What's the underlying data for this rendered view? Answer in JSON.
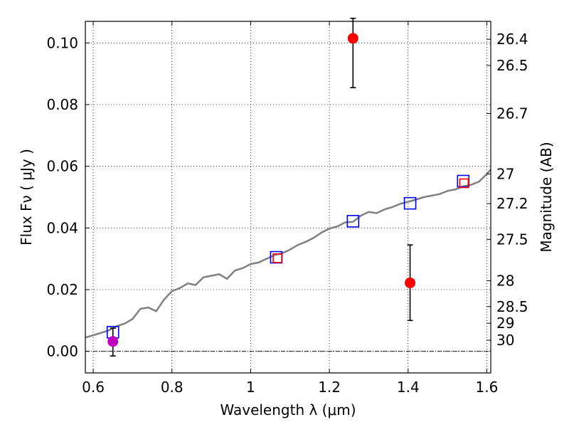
{
  "chart_data": {
    "type": "scatter",
    "xlabel": "Wavelength  λ (μm)",
    "ylabel": "Flux  Fν  ( μJy )",
    "y2label": "Magnitude (AB)",
    "xlim": [
      0.58,
      1.61
    ],
    "ylim": [
      -0.007,
      0.107
    ],
    "grid": true,
    "x_ticks": [
      0.6,
      0.8,
      1.0,
      1.2,
      1.4,
      1.6
    ],
    "x_tick_labels": [
      "0.6",
      "0.8",
      "1",
      "1.2",
      "1.4",
      "1.6"
    ],
    "y_ticks": [
      0.0,
      0.02,
      0.04,
      0.06,
      0.08,
      0.1
    ],
    "y_tick_labels": [
      "0.00",
      "0.02",
      "0.04",
      "0.06",
      "0.08",
      "0.10"
    ],
    "mag_ticks": [
      {
        "flux": 0.1012,
        "label": "26.4"
      },
      {
        "flux": 0.0927,
        "label": "26.5"
      },
      {
        "flux": 0.0771,
        "label": "26.7"
      },
      {
        "flux": 0.0575,
        "label": "27"
      },
      {
        "flux": 0.0479,
        "label": "27.2"
      },
      {
        "flux": 0.0363,
        "label": "27.5"
      },
      {
        "flux": 0.0229,
        "label": "28"
      },
      {
        "flux": 0.0145,
        "label": "28.5"
      },
      {
        "flux": 0.0091,
        "label": "29"
      },
      {
        "flux": 0.0036,
        "label": "30"
      }
    ],
    "zero_line": 0.0,
    "series": [
      {
        "role": "model-spectrum",
        "style": "line",
        "color": "#808080",
        "x": [
          0.58,
          0.6,
          0.62,
          0.64,
          0.66,
          0.68,
          0.7,
          0.72,
          0.74,
          0.76,
          0.78,
          0.8,
          0.82,
          0.84,
          0.86,
          0.88,
          0.9,
          0.92,
          0.94,
          0.96,
          0.98,
          1.0,
          1.02,
          1.04,
          1.06,
          1.08,
          1.1,
          1.12,
          1.14,
          1.16,
          1.18,
          1.2,
          1.22,
          1.24,
          1.26,
          1.28,
          1.3,
          1.32,
          1.34,
          1.36,
          1.38,
          1.4,
          1.42,
          1.44,
          1.46,
          1.48,
          1.5,
          1.52,
          1.54,
          1.56,
          1.58,
          1.6,
          1.61
        ],
        "y": [
          0.0045,
          0.0052,
          0.006,
          0.0068,
          0.0082,
          0.009,
          0.0105,
          0.0138,
          0.0142,
          0.013,
          0.0168,
          0.0195,
          0.0205,
          0.022,
          0.0215,
          0.024,
          0.0245,
          0.025,
          0.0235,
          0.0262,
          0.027,
          0.0283,
          0.0288,
          0.03,
          0.0312,
          0.0318,
          0.033,
          0.0345,
          0.0355,
          0.0368,
          0.0385,
          0.0398,
          0.0405,
          0.0418,
          0.042,
          0.044,
          0.0452,
          0.0448,
          0.046,
          0.0468,
          0.0478,
          0.0485,
          0.0492,
          0.05,
          0.0505,
          0.051,
          0.052,
          0.0525,
          0.0535,
          0.054,
          0.055,
          0.0575,
          0.059
        ]
      },
      {
        "role": "model-photometry",
        "style": "open-square",
        "color": "#0000ff",
        "x": [
          0.65,
          1.065,
          1.26,
          1.405,
          1.54
        ],
        "y": [
          0.0062,
          0.0305,
          0.0422,
          0.048,
          0.0552
        ]
      },
      {
        "role": "observed-photometry",
        "style": "open-square",
        "color": "#ff0000",
        "x": [
          1.068,
          1.542
        ],
        "y": [
          0.0302,
          0.0545
        ]
      },
      {
        "role": "measurements",
        "style": "filled-circle",
        "color": "#ff0000",
        "x": [
          1.26,
          1.405
        ],
        "y": [
          0.1015,
          0.0222
        ],
        "err_low": [
          0.0855,
          0.01
        ],
        "err_high": [
          0.108,
          0.0345
        ]
      },
      {
        "role": "measurement-optical",
        "style": "filled-circle",
        "color": "#bf00bf",
        "x": [
          0.65
        ],
        "y": [
          0.0032
        ],
        "err_low": [
          -0.0015
        ],
        "err_high": [
          0.0075
        ]
      }
    ]
  }
}
